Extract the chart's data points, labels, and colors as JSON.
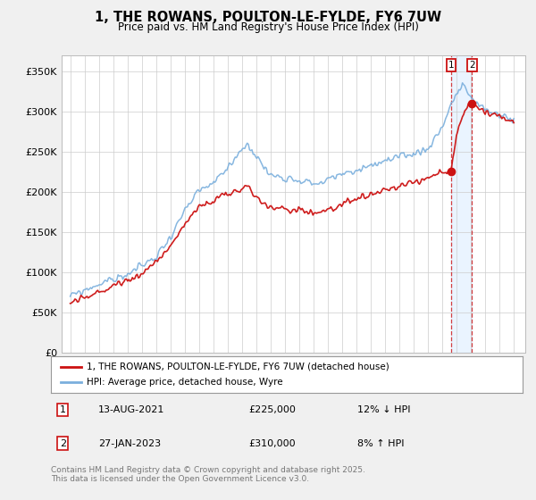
{
  "title": "1, THE ROWANS, POULTON-LE-FYLDE, FY6 7UW",
  "subtitle": "Price paid vs. HM Land Registry's House Price Index (HPI)",
  "ylim": [
    0,
    370000
  ],
  "yticks": [
    0,
    50000,
    100000,
    150000,
    200000,
    250000,
    300000,
    350000
  ],
  "ytick_labels": [
    "£0",
    "£50K",
    "£100K",
    "£150K",
    "£200K",
    "£250K",
    "£300K",
    "£350K"
  ],
  "background_color": "#f0f0f0",
  "plot_bg_color": "#ffffff",
  "hpi_color": "#7aafdd",
  "price_color": "#cc1111",
  "sale1_year": 2021.62,
  "sale1_price": 225000,
  "sale2_year": 2023.08,
  "sale2_price": 310000,
  "legend_line1": "1, THE ROWANS, POULTON-LE-FYLDE, FY6 7UW (detached house)",
  "legend_line2": "HPI: Average price, detached house, Wyre",
  "footer": "Contains HM Land Registry data © Crown copyright and database right 2025.\nThis data is licensed under the Open Government Licence v3.0.",
  "table_row1": [
    "1",
    "13-AUG-2021",
    "£225,000",
    "12% ↓ HPI"
  ],
  "table_row2": [
    "2",
    "27-JAN-2023",
    "£310,000",
    "8% ↑ HPI"
  ]
}
